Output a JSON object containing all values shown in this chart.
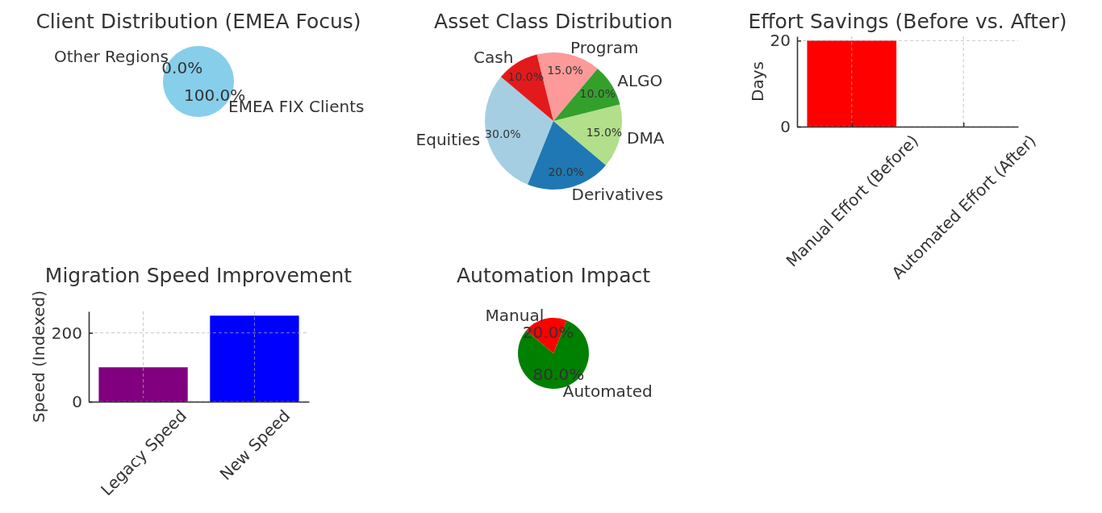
{
  "chart_data": [
    {
      "type": "pie",
      "title": "Client Distribution (EMEA Focus)",
      "categories": [
        "EMEA FIX Clients",
        "Other Regions"
      ],
      "values": [
        100,
        0
      ],
      "colors": [
        "#87ceeb",
        "#d3d3d3"
      ],
      "value_labels": [
        "100.0%",
        "0.0%"
      ]
    },
    {
      "type": "pie",
      "title": "Asset Class Distribution",
      "categories": [
        "Equities",
        "Derivatives",
        "DMA",
        "ALGO",
        "Program",
        "Cash"
      ],
      "values": [
        30,
        20,
        15,
        10,
        15,
        10
      ],
      "colors": [
        "#a6cee3",
        "#1f78b4",
        "#b2df8a",
        "#33a02c",
        "#fb9a99",
        "#e31a1c"
      ],
      "value_labels": [
        "30.0%",
        "20.0%",
        "15.0%",
        "10.0%",
        "15.0%",
        "10.0%"
      ]
    },
    {
      "type": "bar",
      "title": "Effort Savings (Before vs. After)",
      "categories": [
        "Manual Effort (Before)",
        "Automated Effort (After)"
      ],
      "values": [
        20,
        0
      ],
      "colors": [
        "#ff0000",
        "#008000"
      ],
      "ylabel": "Days",
      "ylim": [
        0,
        21
      ],
      "yticks": [
        0,
        20
      ],
      "grid": true
    },
    {
      "type": "bar",
      "title": "Migration Speed Improvement",
      "categories": [
        "Legacy Speed",
        "New Speed"
      ],
      "values": [
        100,
        250
      ],
      "colors": [
        "#800080",
        "#0000ff"
      ],
      "ylabel": "Speed (Indexed)",
      "ylim": [
        0,
        262.5
      ],
      "yticks": [
        0,
        200
      ],
      "grid": true
    },
    {
      "type": "pie",
      "title": "Automation Impact",
      "categories": [
        "Automated",
        "Manual"
      ],
      "values": [
        80,
        20
      ],
      "colors": [
        "#008000",
        "#ff0000"
      ],
      "value_labels": [
        "80.0%",
        "20.0%"
      ]
    }
  ]
}
